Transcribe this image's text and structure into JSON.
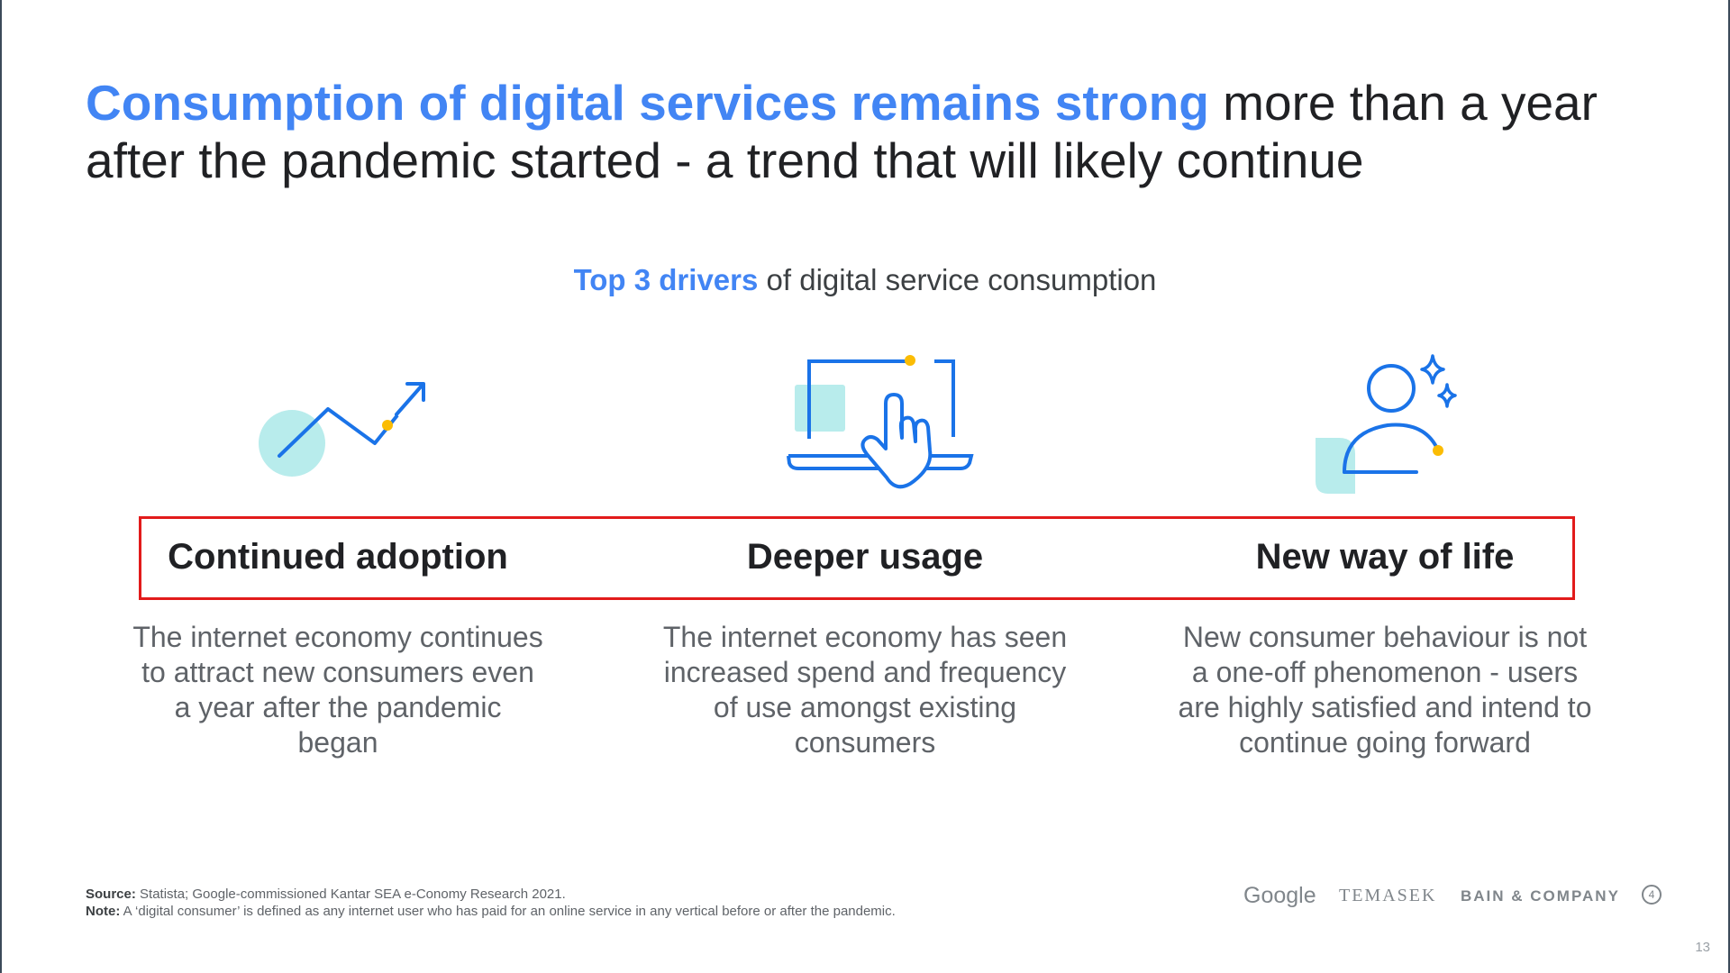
{
  "title": {
    "highlight": "Consumption of digital services remains strong",
    "rest": " more than a year after the pandemic started - a trend that will likely continue"
  },
  "subtitle": {
    "highlight": "Top 3 drivers",
    "rest": " of digital service consumption"
  },
  "drivers": [
    {
      "icon": "trend-up-icon",
      "title": "Continued adoption",
      "description": "The internet economy continues to attract new consumers even a year after the pandemic began"
    },
    {
      "icon": "laptop-touch-icon",
      "title": "Deeper usage",
      "description": "The internet economy has seen increased spend and frequency of use amongst existing consumers"
    },
    {
      "icon": "satisfied-user-icon",
      "title": "New way of life",
      "description": "New consumer behaviour is not a one-off phenomenon - users are highly satisfied and intend to continue going forward"
    }
  ],
  "footnote": {
    "source_label": "Source:",
    "source_text": " Statista; Google-commissioned Kantar SEA e-Conomy Research 2021.",
    "note_label": "Note:",
    "note_text": " A ‘digital consumer’ is defined as any internet user who has paid for an online service in any vertical before or after the pandemic."
  },
  "logos": {
    "google": "Google",
    "temasek": "TEMASEK",
    "bain": "BAIN & COMPANY",
    "bain_mark": "4"
  },
  "page_number": "13",
  "colors": {
    "accent_blue": "#4285f4",
    "icon_blue": "#1a73e8",
    "icon_teal": "#b8ecec",
    "icon_yellow": "#fbbc04",
    "highlight_box_red": "#e21b1b"
  }
}
